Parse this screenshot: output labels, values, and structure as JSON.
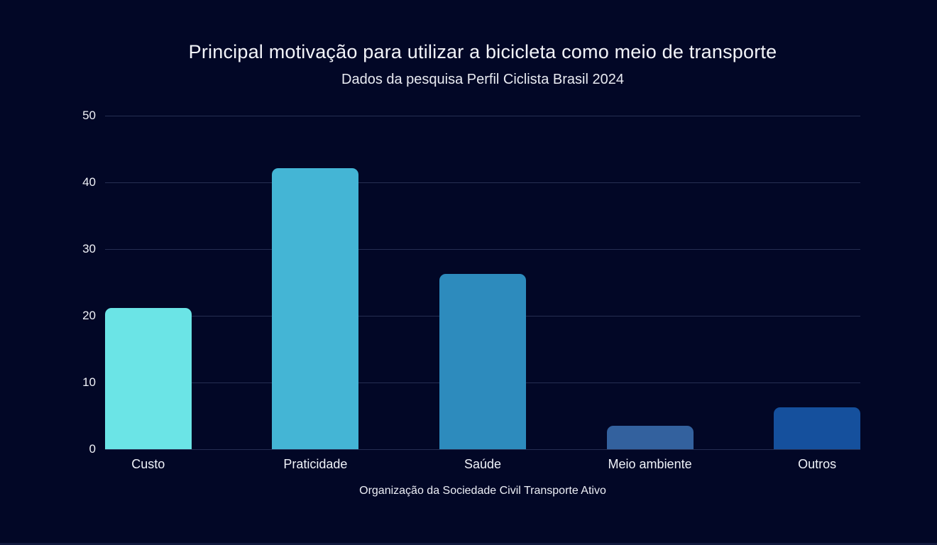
{
  "title": "Principal motivação para utilizar a bicicleta como meio de transporte",
  "subtitle": "Dados da pesquisa Perfil Ciclista Brasil 2024",
  "footer": "Organização da Sociedade Civil Transporte Ativo",
  "colors": {
    "background": "#020726",
    "gridline": "#262e52",
    "text": "#f2f4fa"
  },
  "chart_data": {
    "type": "bar",
    "title": "Principal motivação para utilizar a bicicleta como meio de transporte",
    "subtitle": "Dados da pesquisa Perfil Ciclista Brasil 2024",
    "caption": "Organização da Sociedade Civil Transporte Ativo",
    "categories": [
      "Custo",
      "Praticidade",
      "Saúde",
      "Meio ambiente",
      "Outros"
    ],
    "values": [
      21.2,
      42.1,
      26.3,
      3.5,
      6.3
    ],
    "bar_colors": [
      "#6be4e6",
      "#44b5d5",
      "#2d8bbd",
      "#33619e",
      "#15509d"
    ],
    "xlabel": "",
    "ylabel": "",
    "ylim": [
      0,
      50
    ],
    "yticks": [
      0,
      10,
      20,
      30,
      40,
      50
    ],
    "grid": true,
    "legend": false
  }
}
